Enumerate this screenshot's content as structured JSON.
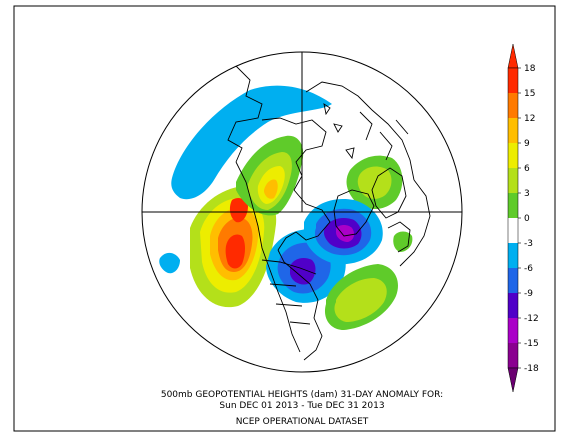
{
  "map": {
    "projection": "north-polar-stereographic",
    "background_color": "#ffffff",
    "disc_color": "#ffffff",
    "coastline_color": "#000000",
    "anomaly_fields": [
      {
        "name": "alaska-bering",
        "anomaly": 17
      },
      {
        "name": "western-canada",
        "anomaly": 12
      },
      {
        "name": "arctic-canada",
        "anomaly": 6
      },
      {
        "name": "north-pacific",
        "anomaly": -5
      },
      {
        "name": "great-lakes",
        "anomaly": -9
      },
      {
        "name": "greenland-north-atlantic",
        "anomaly": -14
      },
      {
        "name": "western-atlantic",
        "anomaly": 7
      },
      {
        "name": "siberia-europe",
        "anomaly": 5
      }
    ]
  },
  "colorbar": {
    "tick_labels": [
      "18",
      "15",
      "12",
      "9",
      "6",
      "3",
      "0",
      "-3",
      "-6",
      "-9",
      "-12",
      "-15",
      "-18"
    ],
    "colors": [
      "#ff2a00",
      "#ff7a00",
      "#ffbe00",
      "#eded00",
      "#b4e01a",
      "#5fcb2a",
      "#ffffff",
      "#00aff0",
      "#1f66e8",
      "#5000c8",
      "#aa00c8",
      "#8a0090"
    ]
  },
  "caption": {
    "line1": "500mb GEOPOTENTIAL HEIGHTS (dam)   31-DAY ANOMALY FOR:",
    "line2": "Sun DEC 01 2013 - Tue DEC 31 2013",
    "line3": "NCEP OPERATIONAL DATASET"
  }
}
